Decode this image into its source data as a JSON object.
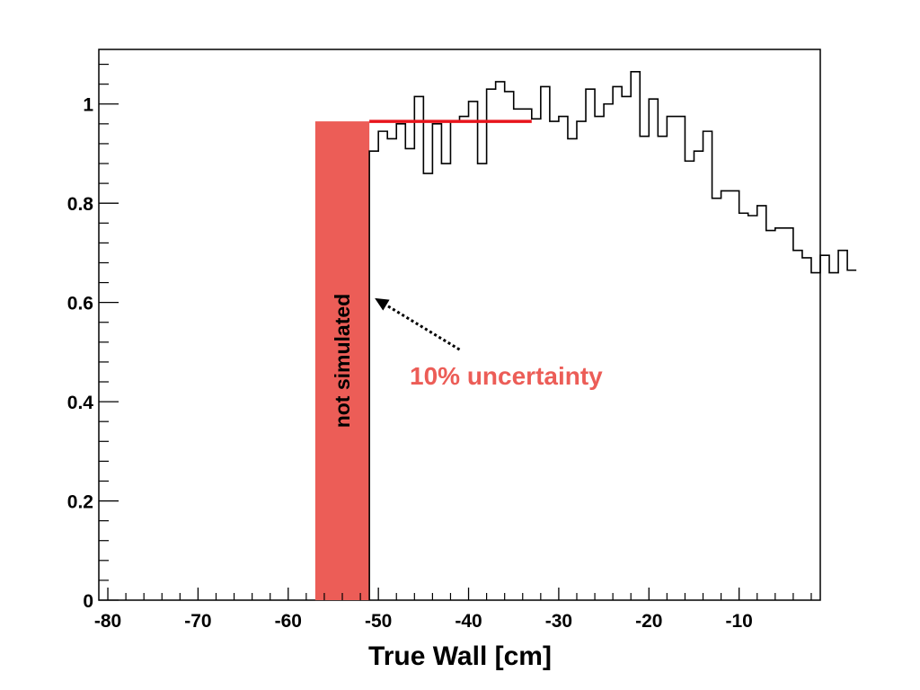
{
  "chart_data": {
    "type": "step-histogram",
    "xlabel": "True Wall [cm]",
    "ylabel": "",
    "xlim": [
      -81,
      -1
    ],
    "ylim": [
      0,
      1.11
    ],
    "x_ticks": [
      -80,
      -70,
      -60,
      -50,
      -40,
      -30,
      -20,
      -10
    ],
    "y_ticks": [
      0,
      0.2,
      0.4,
      0.6,
      0.8,
      1
    ],
    "y_tick_labels": [
      "0",
      "0.2",
      "0.4",
      "0.6",
      "0.8",
      "1"
    ],
    "histogram": {
      "bin_width": 1,
      "start": -51,
      "values": [
        0.905,
        0.945,
        0.93,
        0.96,
        0.91,
        1.015,
        0.86,
        0.96,
        0.88,
        0.965,
        0.975,
        1.005,
        0.88,
        1.03,
        1.045,
        1.025,
        0.99,
        0.99,
        0.97,
        1.035,
        0.965,
        0.975,
        0.93,
        0.965,
        1.03,
        0.975,
        1.0,
        1.035,
        1.015,
        1.065,
        0.935,
        1.01,
        0.935,
        0.975,
        0.975,
        0.885,
        0.905,
        0.945,
        0.81,
        0.825,
        0.825,
        0.78,
        0.775,
        0.795,
        0.745,
        0.75,
        0.75,
        0.705,
        0.69,
        0.66,
        0.695,
        0.66,
        0.705,
        0.665
      ],
      "color": "#000000"
    },
    "uncertainty_line": {
      "y": 0.965,
      "x_start": -51,
      "x_end": -33,
      "color": "#e8151c"
    },
    "band": {
      "x_start": -57,
      "x_end": -51,
      "y_top": 0.965,
      "color": "#ec5d57",
      "label": "not simulated"
    },
    "annotation": {
      "text": "10% uncertainty",
      "color": "#ec5d57",
      "arrow_from": [
        -41,
        0.505
      ],
      "arrow_to": [
        -51,
        0.605
      ]
    },
    "grid": false,
    "legend": "none"
  }
}
